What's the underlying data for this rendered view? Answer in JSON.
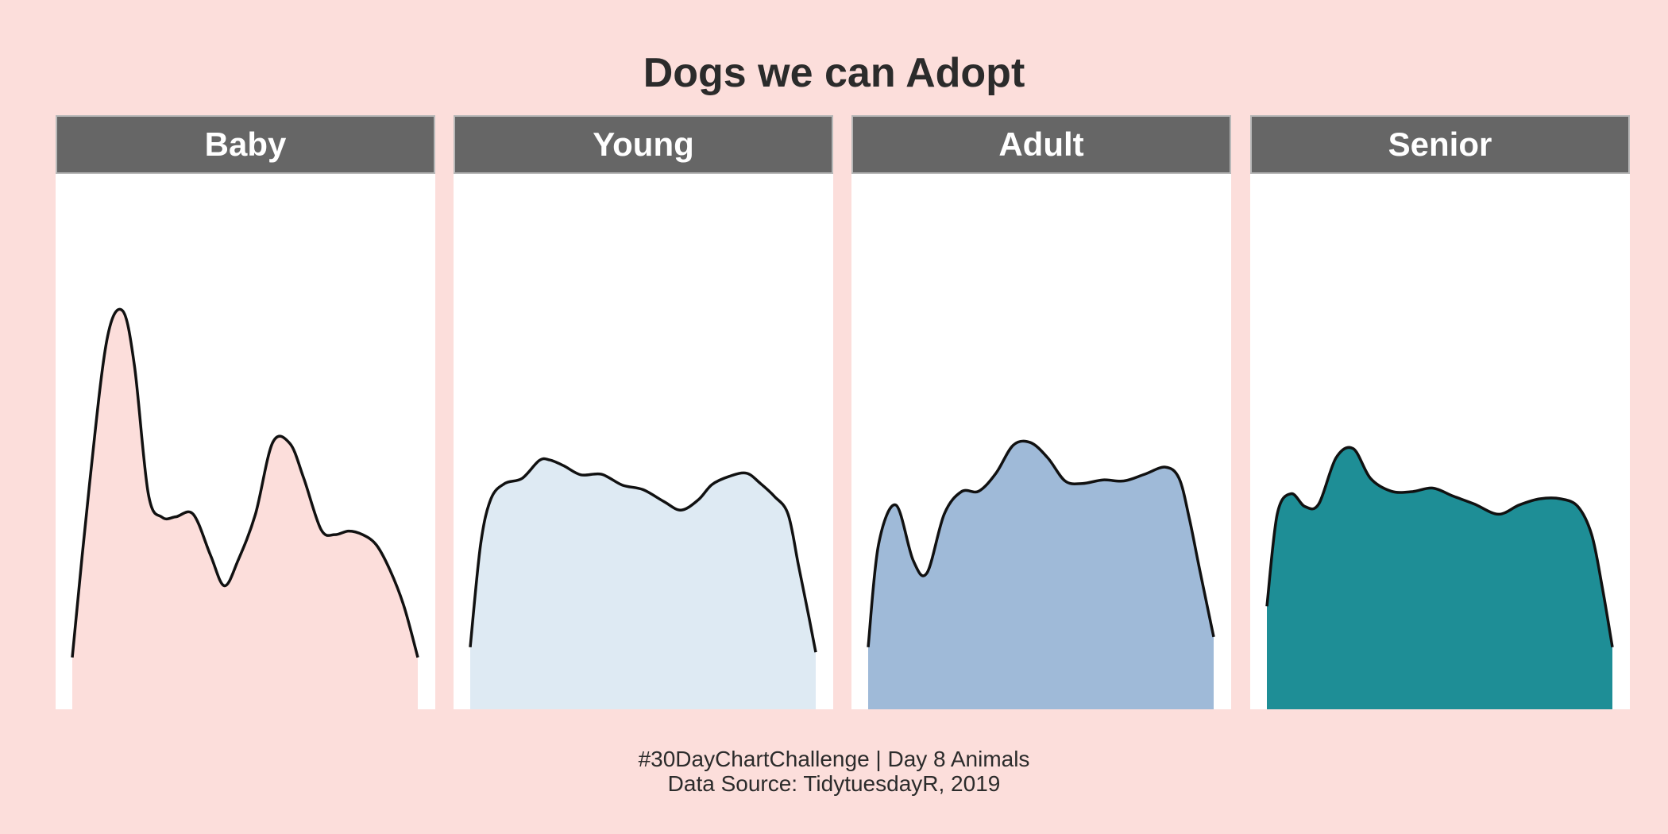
{
  "title": "Dogs we can Adopt",
  "caption_line1": "#30DayChartChallenge | Day  8 Animals",
  "caption_line2": "Data Source: TidytuesdayR,  2019",
  "background_color": "#fcdedb",
  "chart_data": {
    "type": "area",
    "subtype": "density",
    "title": "Dogs we can Adopt",
    "xlabel": "",
    "ylabel": "",
    "x_range": [
      0,
      1
    ],
    "ylim": [
      0,
      1
    ],
    "grid": false,
    "legend": "none",
    "facets": [
      {
        "label": "Baby",
        "fill": "#fcdedb",
        "x": [
          0.0,
          0.05,
          0.1,
          0.145,
          0.18,
          0.22,
          0.26,
          0.3,
          0.35,
          0.4,
          0.44,
          0.48,
          0.53,
          0.58,
          0.63,
          0.67,
          0.72,
          0.76,
          0.8,
          0.84,
          0.88,
          0.92,
          0.96,
          1.0
        ],
        "y": [
          0.28,
          0.62,
          0.9,
          0.958,
          0.85,
          0.6,
          0.554,
          0.555,
          0.56,
          0.48,
          0.42,
          0.47,
          0.56,
          0.7,
          0.698,
          0.63,
          0.53,
          0.52,
          0.527,
          0.52,
          0.5,
          0.45,
          0.38,
          0.28
        ]
      },
      {
        "label": "Young",
        "fill": "#deeaf3",
        "x": [
          0.0,
          0.03,
          0.06,
          0.1,
          0.15,
          0.2,
          0.23,
          0.27,
          0.32,
          0.38,
          0.44,
          0.5,
          0.56,
          0.61,
          0.66,
          0.7,
          0.75,
          0.8,
          0.84,
          0.88,
          0.92,
          0.95,
          0.98,
          1.0
        ],
        "y": [
          0.3,
          0.5,
          0.59,
          0.62,
          0.63,
          0.665,
          0.666,
          0.655,
          0.637,
          0.638,
          0.617,
          0.608,
          0.585,
          0.568,
          0.588,
          0.618,
          0.634,
          0.64,
          0.62,
          0.595,
          0.56,
          0.46,
          0.36,
          0.29
        ]
      },
      {
        "label": "Adult",
        "fill": "#9fbad8",
        "x": [
          0.0,
          0.03,
          0.08,
          0.13,
          0.17,
          0.22,
          0.27,
          0.32,
          0.37,
          0.42,
          0.47,
          0.52,
          0.57,
          0.62,
          0.68,
          0.74,
          0.8,
          0.86,
          0.9,
          0.93,
          0.96,
          1.0
        ],
        "y": [
          0.3,
          0.5,
          0.578,
          0.47,
          0.445,
          0.56,
          0.604,
          0.605,
          0.64,
          0.695,
          0.7,
          0.67,
          0.625,
          0.62,
          0.627,
          0.625,
          0.638,
          0.652,
          0.63,
          0.55,
          0.45,
          0.32
        ]
      },
      {
        "label": "Senior",
        "fill": "#1e8e96",
        "x": [
          0.0,
          0.03,
          0.07,
          0.11,
          0.15,
          0.2,
          0.25,
          0.3,
          0.36,
          0.42,
          0.48,
          0.54,
          0.6,
          0.67,
          0.73,
          0.79,
          0.85,
          0.9,
          0.94,
          0.97,
          1.0
        ],
        "y": [
          0.38,
          0.56,
          0.6,
          0.575,
          0.58,
          0.67,
          0.688,
          0.63,
          0.605,
          0.604,
          0.611,
          0.595,
          0.58,
          0.56,
          0.578,
          0.59,
          0.59,
          0.575,
          0.52,
          0.42,
          0.3
        ]
      }
    ]
  }
}
